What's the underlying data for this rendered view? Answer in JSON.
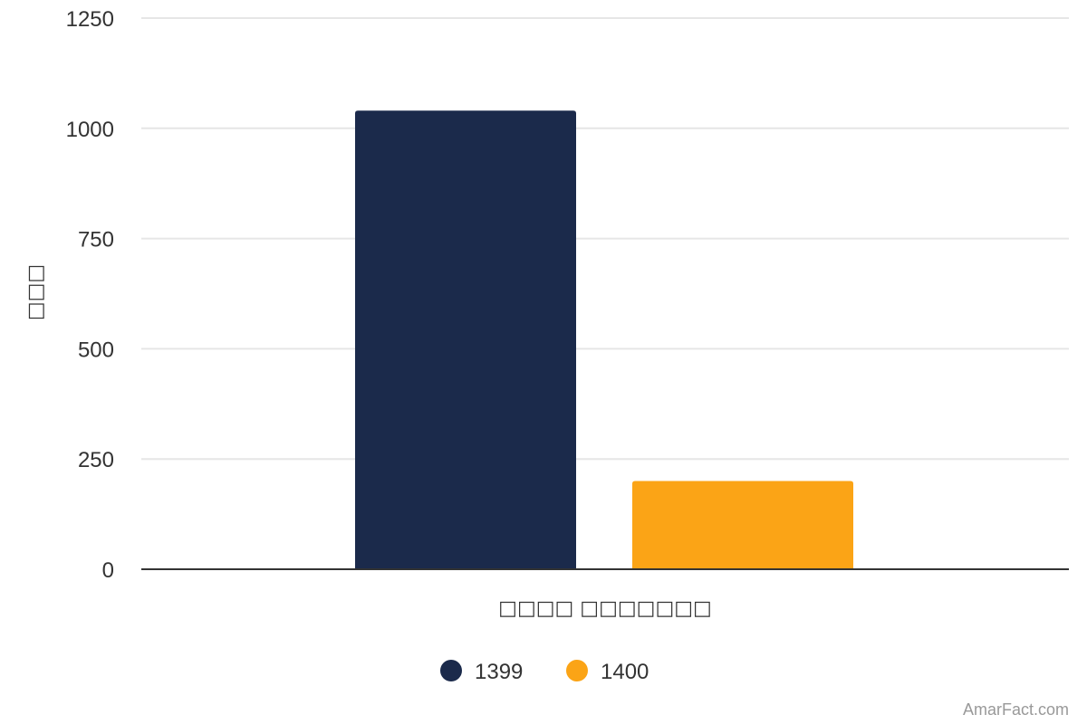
{
  "chart_data": {
    "type": "bar",
    "categories": [
      "□□□□ □□□□□□□"
    ],
    "series": [
      {
        "name": "1399",
        "values": [
          1040
        ],
        "color": "#1b2a4b"
      },
      {
        "name": "1400",
        "values": [
          200
        ],
        "color": "#fba416"
      }
    ],
    "xlabel": "□□□□ □□□□□□□",
    "ylabel": "□□□",
    "ylim": [
      0,
      1250
    ],
    "yticks": [
      0,
      250,
      500,
      750,
      1000,
      1250
    ],
    "grid": true,
    "legend_position": "bottom"
  },
  "credit": "AmarFact.com",
  "colors": {
    "gridline": "#e6e6e6",
    "baseline": "#333333",
    "text": "#333333",
    "credit": "#999999"
  }
}
